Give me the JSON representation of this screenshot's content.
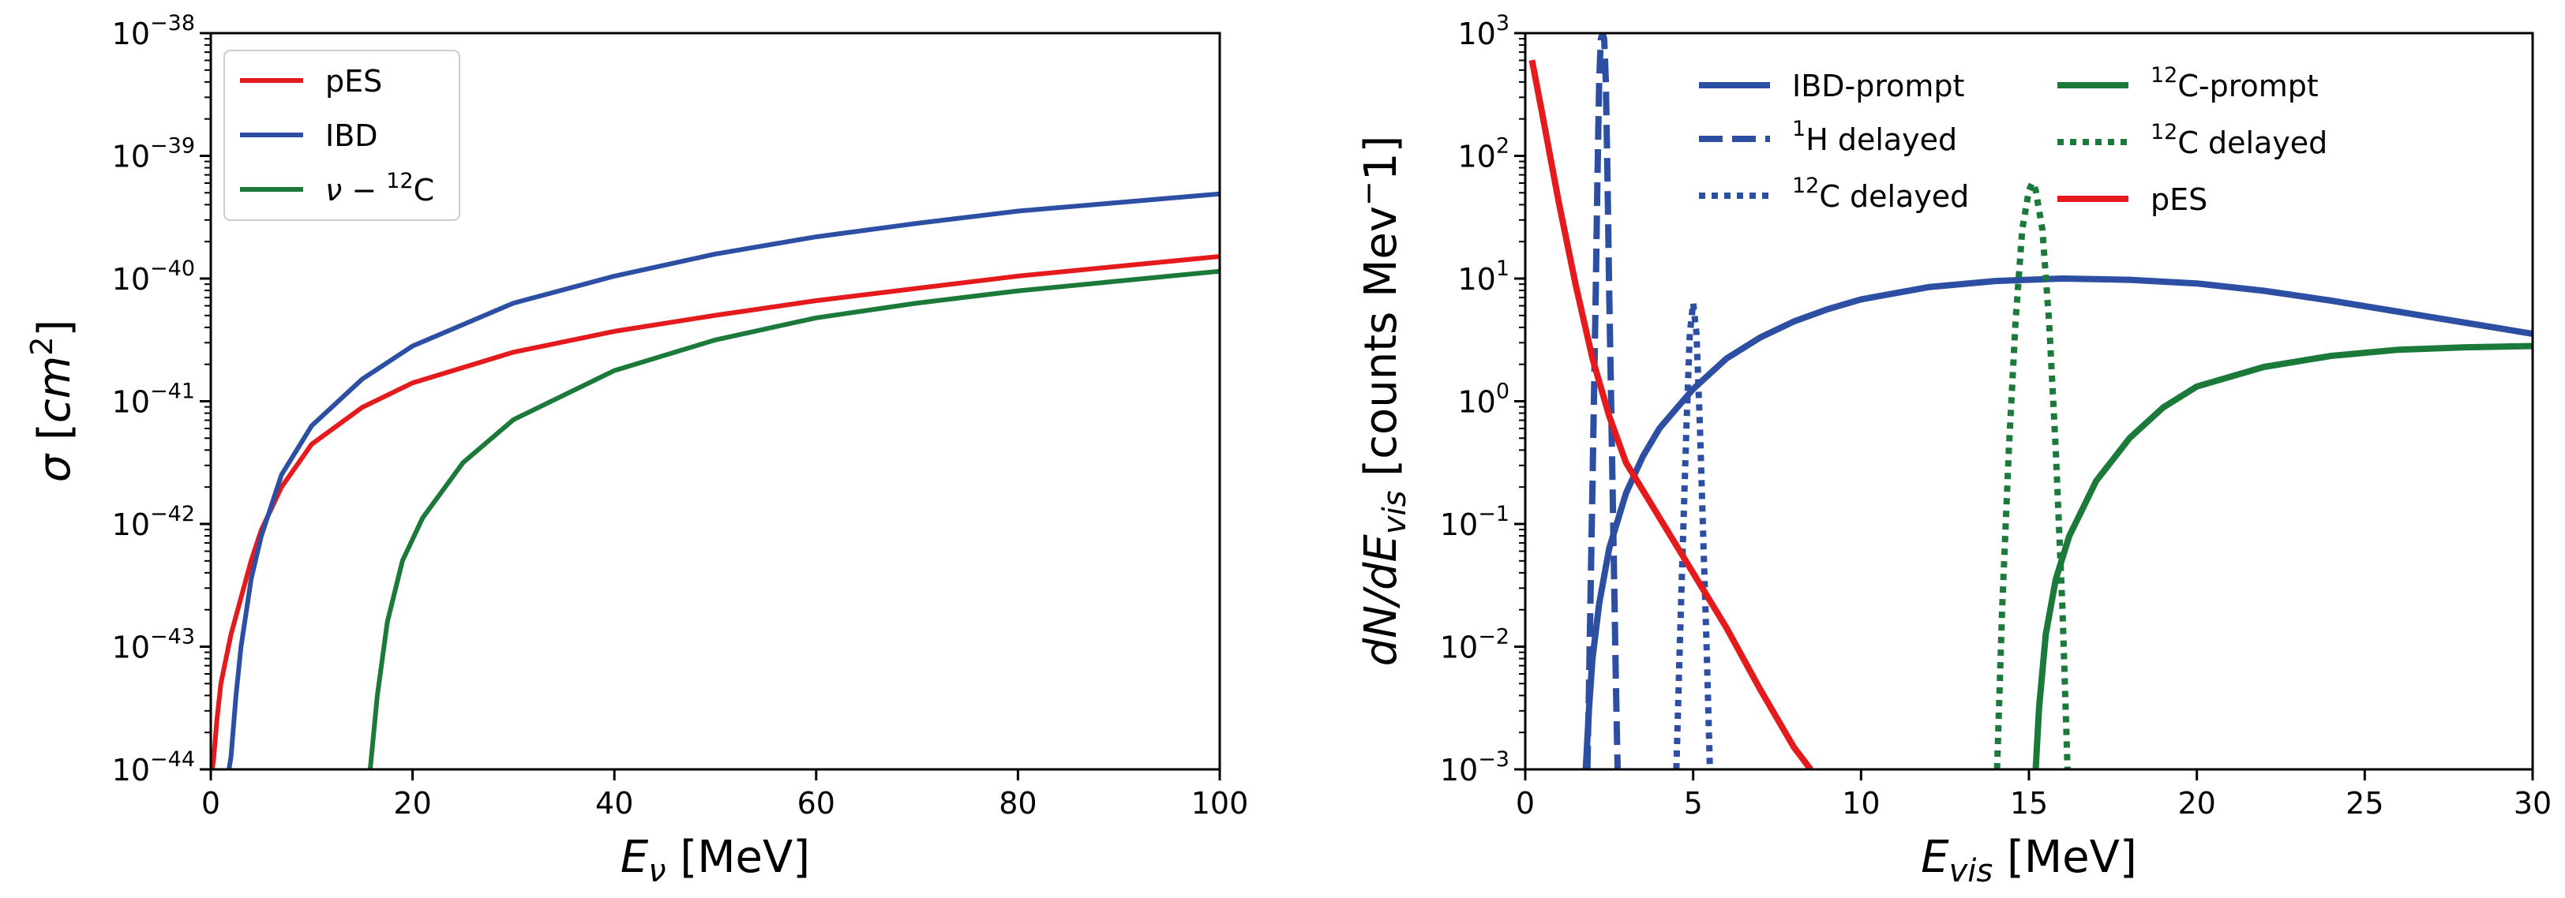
{
  "chart_data": [
    {
      "type": "line",
      "yscale": "log",
      "xlabel": "E_ν [MeV]",
      "ylabel": "σ [cm²]",
      "xlim": [
        0,
        100
      ],
      "ylim_exp": [
        -44,
        -38
      ],
      "x_ticks": [
        0,
        20,
        40,
        60,
        80,
        100
      ],
      "y_ticks_exp": [
        -44,
        -43,
        -42,
        -41,
        -40,
        -39,
        -38
      ],
      "legend_position": "top-left",
      "series": [
        {
          "name": "pES",
          "color": "#e41a1c",
          "style": "solid",
          "points": [
            [
              0.15,
              -44
            ],
            [
              0.3,
              -43.9
            ],
            [
              0.6,
              -43.6
            ],
            [
              1,
              -43.3
            ],
            [
              2,
              -42.9
            ],
            [
              3,
              -42.6
            ],
            [
              4,
              -42.3
            ],
            [
              5,
              -42.05
            ],
            [
              7,
              -41.7
            ],
            [
              10,
              -41.35
            ],
            [
              15,
              -41.05
            ],
            [
              20,
              -40.85
            ],
            [
              30,
              -40.6
            ],
            [
              40,
              -40.43
            ],
            [
              50,
              -40.3
            ],
            [
              60,
              -40.18
            ],
            [
              70,
              -40.08
            ],
            [
              80,
              -39.98
            ],
            [
              90,
              -39.9
            ],
            [
              100,
              -39.82
            ]
          ]
        },
        {
          "name": "IBD",
          "color": "#2d4fa3",
          "style": "solid",
          "points": [
            [
              1.8,
              -44
            ],
            [
              2,
              -43.9
            ],
            [
              2.5,
              -43.4
            ],
            [
              3,
              -43.0
            ],
            [
              4,
              -42.45
            ],
            [
              5,
              -42.1
            ],
            [
              7,
              -41.6
            ],
            [
              10,
              -41.2
            ],
            [
              15,
              -40.82
            ],
            [
              20,
              -40.55
            ],
            [
              30,
              -40.2
            ],
            [
              40,
              -39.98
            ],
            [
              50,
              -39.8
            ],
            [
              60,
              -39.66
            ],
            [
              70,
              -39.55
            ],
            [
              80,
              -39.45
            ],
            [
              90,
              -39.38
            ],
            [
              100,
              -39.31
            ]
          ]
        },
        {
          "name": "ν − ¹²C",
          "color": "#1b7a3a",
          "style": "solid",
          "points": [
            [
              15.8,
              -44
            ],
            [
              16.5,
              -43.4
            ],
            [
              17.5,
              -42.8
            ],
            [
              19,
              -42.3
            ],
            [
              21,
              -41.95
            ],
            [
              25,
              -41.5
            ],
            [
              30,
              -41.15
            ],
            [
              40,
              -40.75
            ],
            [
              50,
              -40.5
            ],
            [
              60,
              -40.32
            ],
            [
              70,
              -40.2
            ],
            [
              80,
              -40.1
            ],
            [
              90,
              -40.02
            ],
            [
              100,
              -39.94
            ]
          ]
        }
      ]
    },
    {
      "type": "line",
      "yscale": "log",
      "xlabel": "E_vis [MeV]",
      "ylabel": "dN/dE_vis [counts Mev⁻1]",
      "xlim": [
        0,
        30
      ],
      "ylim_exp": [
        -3,
        3
      ],
      "x_ticks": [
        0,
        5,
        10,
        15,
        20,
        25,
        30
      ],
      "y_ticks_exp": [
        -3,
        -2,
        -1,
        0,
        1,
        2,
        3
      ],
      "legend_position": "top-center",
      "series": [
        {
          "name": "IBD-prompt",
          "color": "#2d4fa3",
          "style": "solid",
          "points": [
            [
              1.8,
              -3
            ],
            [
              1.9,
              -2.5
            ],
            [
              2,
              -2.1
            ],
            [
              2.2,
              -1.65
            ],
            [
              2.5,
              -1.2
            ],
            [
              3,
              -0.75
            ],
            [
              3.5,
              -0.45
            ],
            [
              4,
              -0.22
            ],
            [
              5,
              0.1
            ],
            [
              6,
              0.35
            ],
            [
              7,
              0.52
            ],
            [
              8,
              0.65
            ],
            [
              9,
              0.75
            ],
            [
              10,
              0.83
            ],
            [
              12,
              0.93
            ],
            [
              14,
              0.98
            ],
            [
              16,
              1.0
            ],
            [
              18,
              0.99
            ],
            [
              20,
              0.96
            ],
            [
              22,
              0.9
            ],
            [
              24,
              0.82
            ],
            [
              26,
              0.73
            ],
            [
              28,
              0.64
            ],
            [
              30,
              0.55
            ]
          ]
        },
        {
          "name": "¹H delayed",
          "color": "#2d4fa3",
          "style": "dashed",
          "points": [
            [
              1.85,
              -3
            ],
            [
              1.9,
              -2.3
            ],
            [
              1.95,
              -1.5
            ],
            [
              2.0,
              -0.7
            ],
            [
              2.05,
              0.1
            ],
            [
              2.1,
              0.9
            ],
            [
              2.15,
              1.8
            ],
            [
              2.2,
              2.6
            ],
            [
              2.25,
              2.95
            ],
            [
              2.3,
              3.0
            ],
            [
              2.35,
              2.95
            ],
            [
              2.4,
              2.6
            ],
            [
              2.45,
              1.8
            ],
            [
              2.5,
              0.9
            ],
            [
              2.55,
              0.1
            ],
            [
              2.6,
              -0.7
            ],
            [
              2.65,
              -1.5
            ],
            [
              2.7,
              -2.3
            ],
            [
              2.75,
              -3
            ]
          ]
        },
        {
          "name": "¹²C delayed",
          "color": "#2d4fa3",
          "style": "dotted",
          "points": [
            [
              4.5,
              -3
            ],
            [
              4.6,
              -2.0
            ],
            [
              4.7,
              -1.1
            ],
            [
              4.8,
              -0.2
            ],
            [
              4.9,
              0.55
            ],
            [
              5.0,
              0.8
            ],
            [
              5.1,
              0.55
            ],
            [
              5.2,
              -0.2
            ],
            [
              5.3,
              -1.1
            ],
            [
              5.4,
              -2.0
            ],
            [
              5.5,
              -3
            ]
          ]
        },
        {
          "name": "¹²C-prompt",
          "color": "#1b7a3a",
          "style": "solid",
          "points": [
            [
              15.2,
              -3
            ],
            [
              15.3,
              -2.5
            ],
            [
              15.5,
              -1.9
            ],
            [
              15.8,
              -1.45
            ],
            [
              16.2,
              -1.1
            ],
            [
              17,
              -0.65
            ],
            [
              18,
              -0.3
            ],
            [
              19,
              -0.05
            ],
            [
              20,
              0.12
            ],
            [
              22,
              0.28
            ],
            [
              24,
              0.37
            ],
            [
              26,
              0.42
            ],
            [
              28,
              0.44
            ],
            [
              30,
              0.45
            ]
          ]
        },
        {
          "name": "¹²C delayed",
          "color": "#1b7a3a",
          "style": "dotted",
          "points": [
            [
              14.05,
              -3
            ],
            [
              14.2,
              -1.7
            ],
            [
              14.4,
              -0.4
            ],
            [
              14.6,
              0.65
            ],
            [
              14.8,
              1.4
            ],
            [
              15.0,
              1.72
            ],
            [
              15.1,
              1.78
            ],
            [
              15.2,
              1.72
            ],
            [
              15.4,
              1.4
            ],
            [
              15.6,
              0.65
            ],
            [
              15.8,
              -0.4
            ],
            [
              16.0,
              -1.7
            ],
            [
              16.15,
              -3
            ]
          ]
        },
        {
          "name": "pES",
          "color": "#e41a1c",
          "style": "solid",
          "points": [
            [
              0.2,
              2.78
            ],
            [
              0.5,
              2.35
            ],
            [
              1,
              1.62
            ],
            [
              1.5,
              0.95
            ],
            [
              2,
              0.35
            ],
            [
              2.5,
              -0.12
            ],
            [
              3,
              -0.5
            ],
            [
              4,
              -0.95
            ],
            [
              5,
              -1.4
            ],
            [
              6,
              -1.85
            ],
            [
              7,
              -2.35
            ],
            [
              8,
              -2.82
            ],
            [
              8.5,
              -3
            ]
          ]
        }
      ],
      "legend": [
        "IBD-prompt",
        "¹H delayed",
        "¹²C delayed",
        "¹²C-prompt",
        "¹²C delayed",
        "pES"
      ]
    }
  ]
}
